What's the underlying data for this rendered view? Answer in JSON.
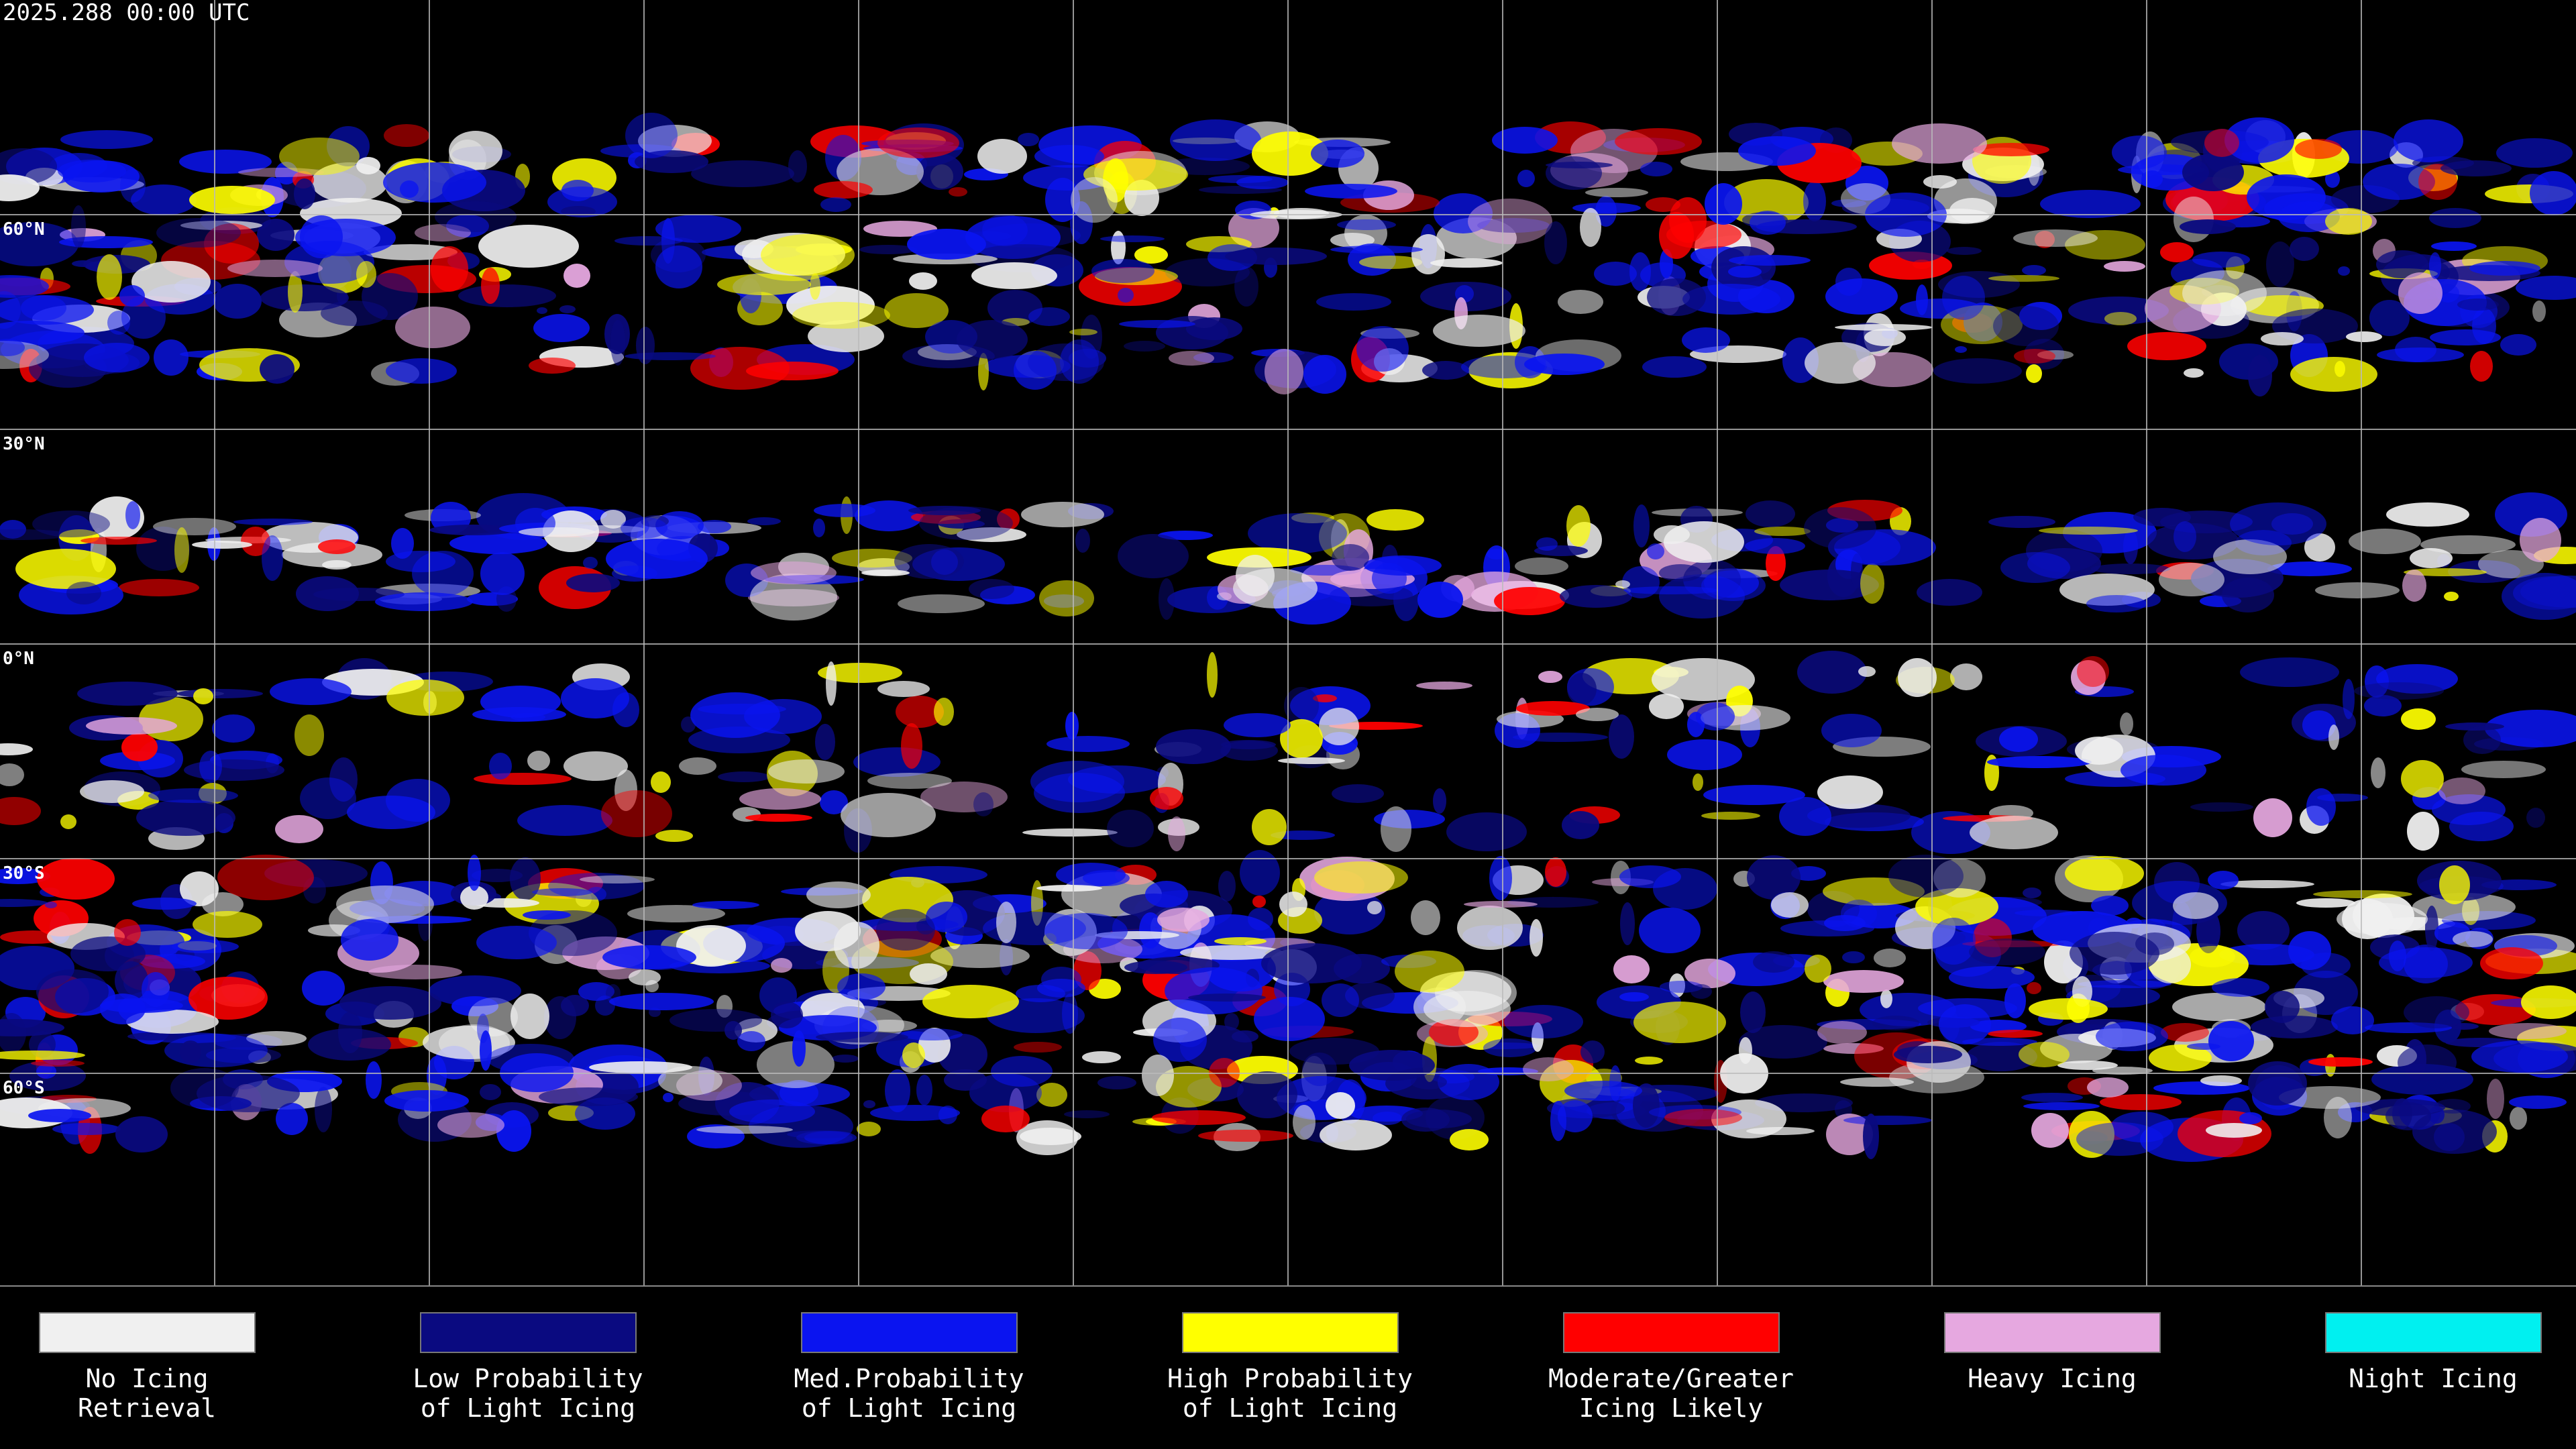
{
  "header": {
    "timestamp": "2025.288 00:00 UTC"
  },
  "map": {
    "latitude_labels": [
      "60°N",
      "30°N",
      "0°N",
      "30°S",
      "60°S"
    ]
  },
  "legend": {
    "items": [
      {
        "color": "#f0f0f0",
        "lines": [
          "No Icing",
          "Retrieval"
        ]
      },
      {
        "color": "#0a0a80",
        "lines": [
          "Low Probability",
          "of Light Icing"
        ]
      },
      {
        "color": "#0a14f0",
        "lines": [
          "Med.Probability",
          "of Light Icing"
        ]
      },
      {
        "color": "#ffff00",
        "lines": [
          "High Probability",
          "of Light Icing"
        ]
      },
      {
        "color": "#ff0000",
        "lines": [
          "Moderate/Greater",
          "Icing Likely"
        ]
      },
      {
        "color": "#e6a8e0",
        "lines": [
          "Heavy Icing"
        ]
      },
      {
        "color": "#00f0f0",
        "lines": [
          "Night Icing"
        ]
      }
    ]
  }
}
